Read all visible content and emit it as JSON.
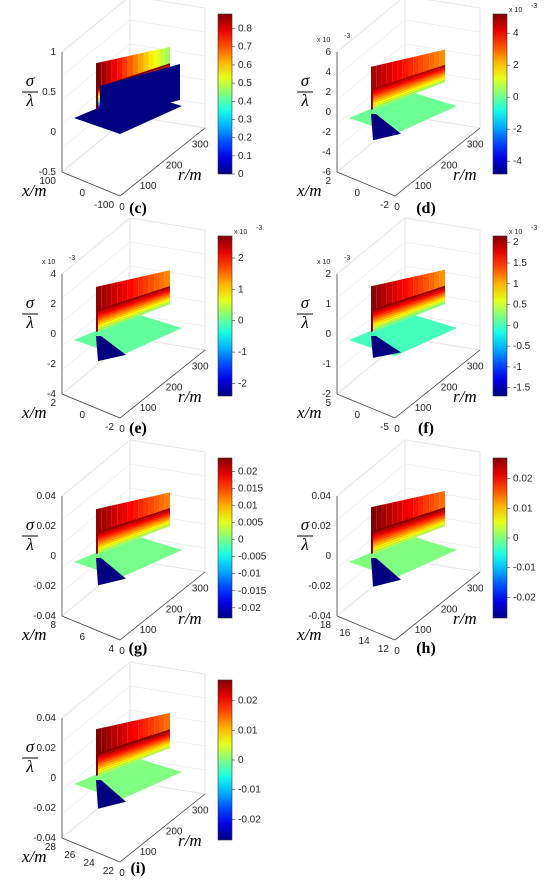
{
  "chart_data": [
    {
      "id": "c",
      "caption": "(c)",
      "type": "surface",
      "zlabel": "σ/λ",
      "xlabel": "x/m",
      "ylabel": "r/m",
      "z_ticks": [
        "1",
        "0.5",
        "0",
        "-0.5"
      ],
      "z_exponent": "",
      "x_ticks": [
        "100",
        "0",
        "-100"
      ],
      "r_ticks": [
        "0",
        "100",
        "200",
        "300"
      ],
      "colorbar_ticks": [
        "0.8",
        "0.7",
        "0.6",
        "0.5",
        "0.4",
        "0.3",
        "0.2",
        "0.1",
        "0"
      ],
      "colorbar_range": [
        0,
        0.88
      ],
      "crest_value": 0.88,
      "trough_value": 0,
      "plane_value": 0
    },
    {
      "id": "d",
      "caption": "(d)",
      "type": "surface",
      "zlabel": "σ/λ",
      "xlabel": "x/m",
      "ylabel": "r/m",
      "z_ticks": [
        "6",
        "4",
        "2",
        "0",
        "-2",
        "-4",
        "-6"
      ],
      "z_exponent": "x 10",
      "x_ticks": [
        "2",
        "0",
        "-2"
      ],
      "r_ticks": [
        "0",
        "100",
        "200",
        "300"
      ],
      "colorbar_ticks": [
        "4",
        "2",
        "0",
        "-2",
        "-4"
      ],
      "colorbar_exponent": "x 10",
      "colorbar_range": [
        -4.8,
        5.2
      ],
      "crest_value": 4.8,
      "trough_value": -4.8,
      "plane_value": 0
    },
    {
      "id": "e",
      "caption": "(e)",
      "type": "surface",
      "zlabel": "σ/λ",
      "xlabel": "x/m",
      "ylabel": "r/m",
      "z_ticks": [
        "4",
        "2",
        "0",
        "-2",
        "-4"
      ],
      "z_exponent": "x 10",
      "x_ticks": [
        "2",
        "0",
        "-2"
      ],
      "r_ticks": [
        "0",
        "100",
        "200",
        "300"
      ],
      "colorbar_ticks": [
        "2",
        "1",
        "0",
        "-1",
        "-2"
      ],
      "colorbar_exponent": "x 10",
      "colorbar_range": [
        -2.4,
        2.7
      ],
      "crest_value": 2.6,
      "trough_value": -2.4,
      "plane_value": 0
    },
    {
      "id": "f",
      "caption": "(f)",
      "type": "surface",
      "zlabel": "σ/λ",
      "xlabel": "x/m",
      "ylabel": "r/m",
      "z_ticks": [
        "2",
        "1",
        "0",
        "-1",
        "-2"
      ],
      "z_exponent": "x 10",
      "x_ticks": [
        "5",
        "0",
        "-5"
      ],
      "r_ticks": [
        "0",
        "100",
        "200",
        "300"
      ],
      "colorbar_ticks": [
        "2",
        "1.5",
        "1",
        "0.5",
        "0",
        "-0.5",
        "-1",
        "-1.5"
      ],
      "colorbar_exponent": "x 10",
      "colorbar_range": [
        -1.7,
        2.15
      ],
      "crest_value": 2.1,
      "trough_value": -1.7,
      "plane_value": 0
    },
    {
      "id": "g",
      "caption": "(g)",
      "type": "surface",
      "zlabel": "σ/λ",
      "xlabel": "x/m",
      "ylabel": "r/m",
      "z_ticks": [
        "0.04",
        "0.02",
        "0",
        "-0.02",
        "-0.04"
      ],
      "z_exponent": "",
      "x_ticks": [
        "8",
        "6",
        "4"
      ],
      "r_ticks": [
        "0",
        "100",
        "200",
        "300"
      ],
      "colorbar_ticks": [
        "0.02",
        "0.015",
        "0.01",
        "0.005",
        "0",
        "-0.005",
        "-0.01",
        "-0.015",
        "-0.02"
      ],
      "colorbar_range": [
        -0.023,
        0.024
      ],
      "crest_value": 0.023,
      "trough_value": -0.023,
      "plane_value": 0
    },
    {
      "id": "h",
      "caption": "(h)",
      "type": "surface",
      "zlabel": "σ/λ",
      "xlabel": "x/m",
      "ylabel": "r/m",
      "z_ticks": [
        "0.04",
        "0.02",
        "0",
        "-0.02",
        "-0.04"
      ],
      "z_exponent": "",
      "x_ticks": [
        "18",
        "16",
        "14",
        "12"
      ],
      "r_ticks": [
        "0",
        "100",
        "200",
        "300"
      ],
      "colorbar_ticks": [
        "0.02",
        "0.01",
        "0",
        "-0.01",
        "-0.02"
      ],
      "colorbar_range": [
        -0.027,
        0.027
      ],
      "crest_value": 0.027,
      "trough_value": -0.027,
      "plane_value": 0
    },
    {
      "id": "i",
      "caption": "(i)",
      "type": "surface",
      "zlabel": "σ/λ",
      "xlabel": "x/m",
      "ylabel": "r/m",
      "z_ticks": [
        "0.04",
        "0.02",
        "0",
        "-0.02",
        "-0.04"
      ],
      "z_exponent": "",
      "x_ticks": [
        "28",
        "26",
        "24",
        "22"
      ],
      "r_ticks": [
        "0",
        "100",
        "200",
        "300"
      ],
      "colorbar_ticks": [
        "0.02",
        "0.01",
        "0",
        "-0.01",
        "-0.02"
      ],
      "colorbar_range": [
        -0.027,
        0.027
      ],
      "crest_value": 0.027,
      "trough_value": -0.027,
      "plane_value": 0
    }
  ]
}
